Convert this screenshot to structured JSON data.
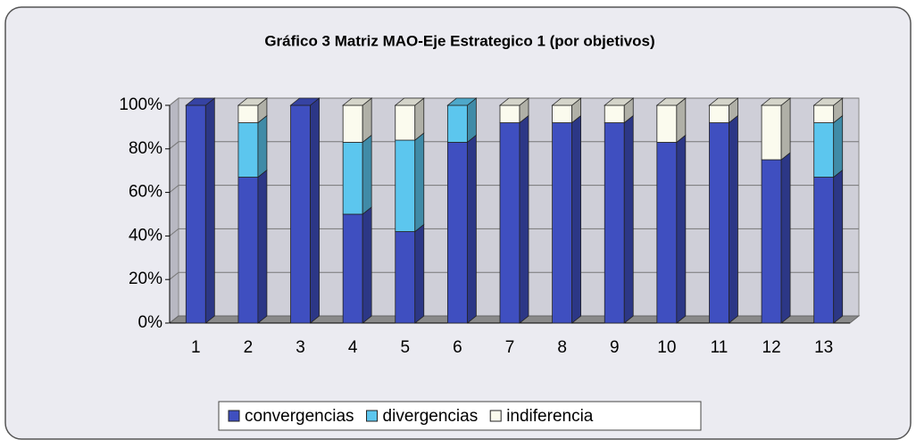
{
  "chart_data": {
    "type": "stacked-bar-3d",
    "title": "Gráfico 3  Matriz MAO-Eje Estrategico 1 (por objetivos)",
    "categories": [
      "1",
      "2",
      "3",
      "4",
      "5",
      "6",
      "7",
      "8",
      "9",
      "10",
      "11",
      "12",
      "13"
    ],
    "series": [
      {
        "name": "convergencias",
        "color": "#3f4fc0",
        "values": [
          100,
          67,
          100,
          50,
          42,
          83,
          92,
          92,
          92,
          83,
          92,
          75,
          67
        ]
      },
      {
        "name": "divergencias",
        "color": "#5cc6ee",
        "values": [
          0,
          25,
          0,
          33,
          42,
          17,
          0,
          0,
          0,
          0,
          0,
          0,
          25
        ]
      },
      {
        "name": "indiferencia",
        "color": "#fbfbee",
        "values": [
          0,
          8,
          0,
          17,
          16,
          0,
          8,
          8,
          8,
          17,
          8,
          25,
          8
        ]
      }
    ],
    "ylim": [
      0,
      100
    ],
    "yticks": [
      {
        "value": 0,
        "label": "0%"
      },
      {
        "value": 20,
        "label": "20%"
      },
      {
        "value": 40,
        "label": "40%"
      },
      {
        "value": 60,
        "label": "60%"
      },
      {
        "value": 80,
        "label": "80%"
      },
      {
        "value": 100,
        "label": "100%"
      }
    ],
    "grid": true,
    "legend": "bottom"
  }
}
